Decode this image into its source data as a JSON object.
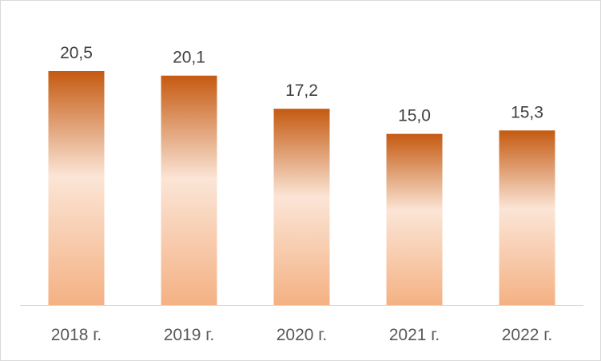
{
  "chart_data": {
    "type": "bar",
    "categories": [
      "2018 г.",
      "2019 г.",
      "2020 г.",
      "2021 г.",
      "2022 г."
    ],
    "values": [
      20.5,
      20.1,
      17.2,
      15.0,
      15.3
    ],
    "value_labels": [
      "20,5",
      "20,1",
      "17,2",
      "15,0",
      "15,3"
    ],
    "title": "",
    "xlabel": "",
    "ylabel": "",
    "ylim": [
      0,
      20.5
    ],
    "grid": false,
    "legend": "none",
    "colors": {
      "bar_top": "#c55a11",
      "bar_mid": "#fbe5d6",
      "bar_bottom": "#f4b183",
      "axis": "#d9d9d9",
      "label_text": "#404040",
      "category_text": "#595959"
    }
  }
}
